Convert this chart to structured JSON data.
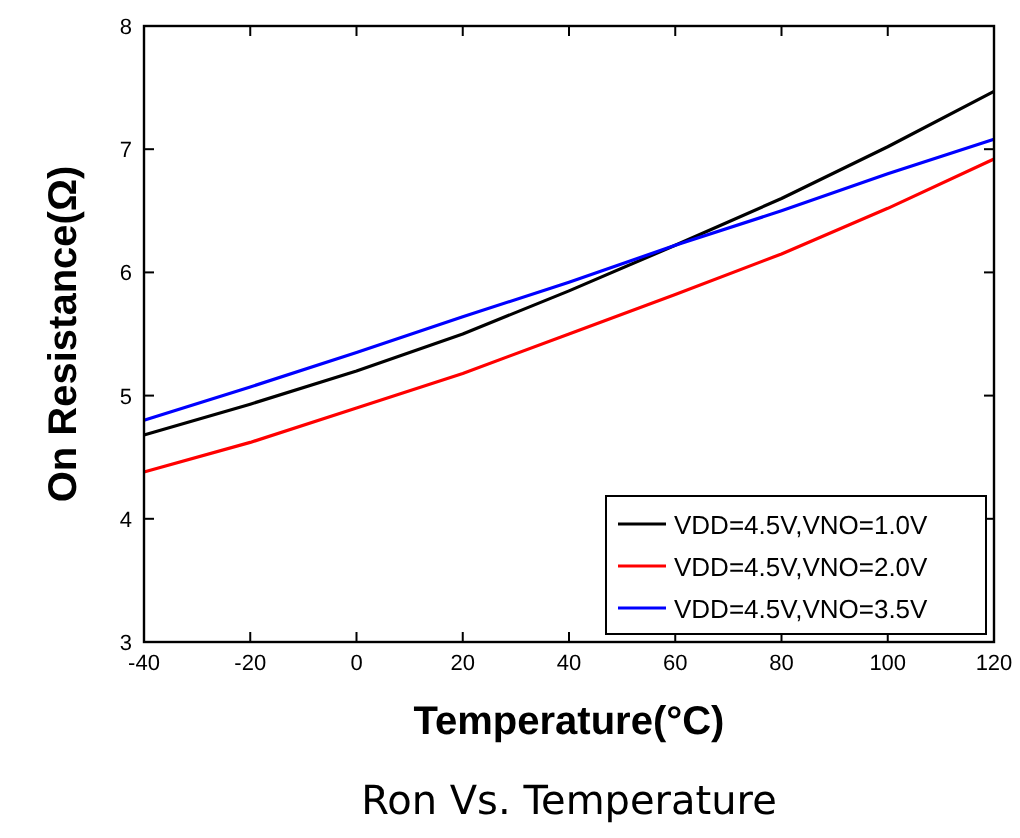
{
  "chart_data": {
    "type": "line",
    "title": "Ron Vs. Temperature",
    "xlabel": "Temperature(°C)",
    "ylabel": "On Resistance(Ω)",
    "x": [
      -40,
      -20,
      0,
      20,
      40,
      60,
      80,
      100,
      120
    ],
    "series": [
      {
        "name": "VDD=4.5V,VNO=1.0V",
        "color": "#000000",
        "values": [
          4.68,
          4.93,
          5.2,
          5.5,
          5.85,
          6.22,
          6.6,
          7.02,
          7.47
        ]
      },
      {
        "name": "VDD=4.5V,VNO=2.0V",
        "color": "#ff0000",
        "values": [
          4.38,
          4.62,
          4.9,
          5.18,
          5.5,
          5.82,
          6.15,
          6.52,
          6.92
        ]
      },
      {
        "name": "VDD=4.5V,VNO=3.5V",
        "color": "#0000ff",
        "values": [
          4.8,
          5.07,
          5.35,
          5.64,
          5.92,
          6.22,
          6.5,
          6.8,
          7.08
        ]
      }
    ],
    "xlim": [
      -40,
      120
    ],
    "xticks": [
      -40,
      -20,
      0,
      20,
      40,
      60,
      80,
      100,
      120
    ],
    "ylim": [
      3,
      8
    ],
    "yticks": [
      3,
      4,
      5,
      6,
      7,
      8
    ],
    "grid": false,
    "legend": "bottom right",
    "marker": "none",
    "line_style": "solid"
  }
}
